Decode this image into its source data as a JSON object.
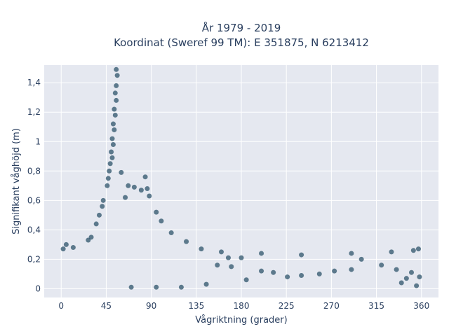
{
  "chart_data": {
    "type": "scatter",
    "title_line1": "År 1979 - 2019",
    "title_line2": "Koordinat (Sweref 99 TM): E 351875, N 6213412",
    "xlabel": "Vågriktning (grader)",
    "ylabel": "Signifikant våghöjd (m)",
    "xlim": [
      -17,
      377
    ],
    "ylim": [
      -0.06,
      1.52
    ],
    "x_ticks": [
      0,
      45,
      90,
      135,
      180,
      225,
      270,
      315,
      360
    ],
    "x_tick_labels": [
      "0",
      "45",
      "90",
      "135",
      "180",
      "225",
      "270",
      "315",
      "360"
    ],
    "y_ticks": [
      0,
      0.2,
      0.4,
      0.6,
      0.8,
      1.0,
      1.2,
      1.4
    ],
    "y_tick_labels": [
      "0",
      "0,2",
      "0,4",
      "0,6",
      "0,8",
      "1",
      "1,2",
      "1,4"
    ],
    "marker_color": "#2e546b",
    "plot_bg": "#e5e8f0",
    "grid": true,
    "series": [
      {
        "points": [
          [
            55,
            1.49
          ],
          [
            56,
            1.45
          ],
          [
            55,
            1.38
          ],
          [
            54,
            1.33
          ],
          [
            55,
            1.28
          ],
          [
            53,
            1.22
          ],
          [
            54,
            1.18
          ],
          [
            52,
            1.12
          ],
          [
            53,
            1.08
          ],
          [
            51,
            1.02
          ],
          [
            52,
            0.98
          ],
          [
            50,
            0.93
          ],
          [
            51,
            0.89
          ],
          [
            49,
            0.85
          ],
          [
            48,
            0.8
          ],
          [
            60,
            0.79
          ],
          [
            47,
            0.75
          ],
          [
            84,
            0.76
          ],
          [
            67,
            0.7
          ],
          [
            73,
            0.69
          ],
          [
            86,
            0.68
          ],
          [
            80,
            0.67
          ],
          [
            46,
            0.7
          ],
          [
            88,
            0.63
          ],
          [
            64,
            0.62
          ],
          [
            42,
            0.6
          ],
          [
            41,
            0.56
          ],
          [
            95,
            0.52
          ],
          [
            38,
            0.5
          ],
          [
            100,
            0.46
          ],
          [
            35,
            0.44
          ],
          [
            110,
            0.38
          ],
          [
            30,
            0.35
          ],
          [
            125,
            0.32
          ],
          [
            140,
            0.27
          ],
          [
            160,
            0.25
          ],
          [
            200,
            0.24
          ],
          [
            240,
            0.23
          ],
          [
            290,
            0.24
          ],
          [
            330,
            0.25
          ],
          [
            352,
            0.26
          ],
          [
            357,
            0.27
          ],
          [
            2,
            0.27
          ],
          [
            5,
            0.3
          ],
          [
            12,
            0.28
          ],
          [
            27,
            0.33
          ],
          [
            156,
            0.16
          ],
          [
            167,
            0.21
          ],
          [
            180,
            0.21
          ],
          [
            185,
            0.06
          ],
          [
            170,
            0.15
          ],
          [
            145,
            0.03
          ],
          [
            120,
            0.01
          ],
          [
            95,
            0.01
          ],
          [
            70,
            0.01
          ],
          [
            300,
            0.2
          ],
          [
            345,
            0.07
          ],
          [
            355,
            0.02
          ],
          [
            350,
            0.11
          ],
          [
            340,
            0.04
          ],
          [
            358,
            0.08
          ],
          [
            240,
            0.09
          ],
          [
            258,
            0.1
          ],
          [
            273,
            0.12
          ],
          [
            290,
            0.13
          ],
          [
            320,
            0.16
          ],
          [
            335,
            0.13
          ],
          [
            212,
            0.11
          ],
          [
            226,
            0.08
          ],
          [
            200,
            0.12
          ]
        ]
      }
    ]
  }
}
